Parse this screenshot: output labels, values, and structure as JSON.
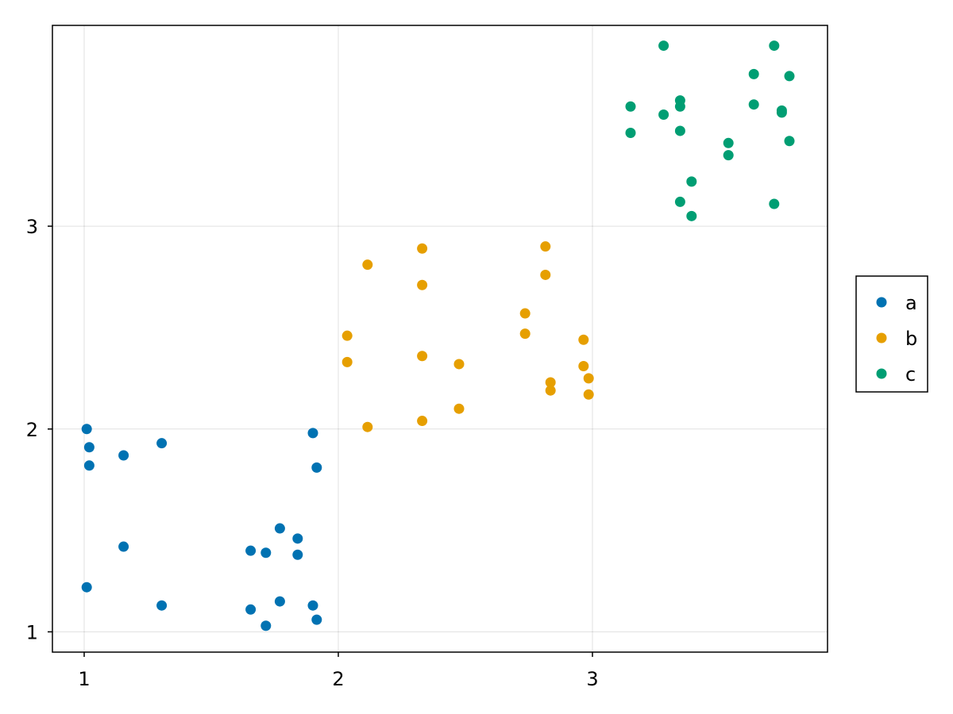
{
  "chart_data": {
    "type": "scatter",
    "title": "",
    "xlabel": "",
    "ylabel": "",
    "xlim": [
      0.875,
      3.925
    ],
    "ylim": [
      0.9,
      3.99
    ],
    "x_ticks": [
      1,
      2,
      3
    ],
    "y_ticks": [
      1,
      2,
      3
    ],
    "x_tick_labels": [
      "1",
      "2",
      "3"
    ],
    "y_tick_labels": [
      "1",
      "2",
      "3"
    ],
    "grid": true,
    "legend_position": "right",
    "series": [
      {
        "name": "a",
        "color": "#0072b2",
        "points": [
          [
            1.01,
            2.0
          ],
          [
            1.02,
            1.91
          ],
          [
            1.02,
            1.82
          ],
          [
            1.155,
            1.87
          ],
          [
            1.305,
            1.93
          ],
          [
            1.155,
            1.42
          ],
          [
            1.01,
            1.22
          ],
          [
            1.305,
            1.13
          ],
          [
            1.9,
            1.98
          ],
          [
            1.915,
            1.81
          ],
          [
            1.77,
            1.51
          ],
          [
            1.84,
            1.46
          ],
          [
            1.655,
            1.4
          ],
          [
            1.715,
            1.39
          ],
          [
            1.84,
            1.38
          ],
          [
            1.77,
            1.15
          ],
          [
            1.9,
            1.13
          ],
          [
            1.655,
            1.11
          ],
          [
            1.915,
            1.06
          ],
          [
            1.715,
            1.03
          ]
        ]
      },
      {
        "name": "b",
        "color": "#e69f00",
        "points": [
          [
            2.33,
            2.89
          ],
          [
            2.815,
            2.9
          ],
          [
            2.115,
            2.81
          ],
          [
            2.815,
            2.76
          ],
          [
            2.33,
            2.71
          ],
          [
            2.735,
            2.57
          ],
          [
            2.735,
            2.47
          ],
          [
            2.035,
            2.46
          ],
          [
            2.965,
            2.44
          ],
          [
            2.33,
            2.36
          ],
          [
            2.035,
            2.33
          ],
          [
            2.475,
            2.32
          ],
          [
            2.965,
            2.31
          ],
          [
            2.985,
            2.25
          ],
          [
            2.835,
            2.23
          ],
          [
            2.835,
            2.19
          ],
          [
            2.985,
            2.17
          ],
          [
            2.475,
            2.1
          ],
          [
            2.33,
            2.04
          ],
          [
            2.115,
            2.01
          ]
        ]
      },
      {
        "name": "c",
        "color": "#009e73",
        "points": [
          [
            3.28,
            3.89
          ],
          [
            3.715,
            3.89
          ],
          [
            3.635,
            3.75
          ],
          [
            3.775,
            3.74
          ],
          [
            3.345,
            3.62
          ],
          [
            3.635,
            3.6
          ],
          [
            3.15,
            3.59
          ],
          [
            3.345,
            3.59
          ],
          [
            3.745,
            3.57
          ],
          [
            3.745,
            3.56
          ],
          [
            3.28,
            3.55
          ],
          [
            3.345,
            3.47
          ],
          [
            3.15,
            3.46
          ],
          [
            3.775,
            3.42
          ],
          [
            3.535,
            3.41
          ],
          [
            3.535,
            3.35
          ],
          [
            3.39,
            3.22
          ],
          [
            3.345,
            3.12
          ],
          [
            3.715,
            3.11
          ],
          [
            3.39,
            3.05
          ]
        ]
      }
    ]
  }
}
